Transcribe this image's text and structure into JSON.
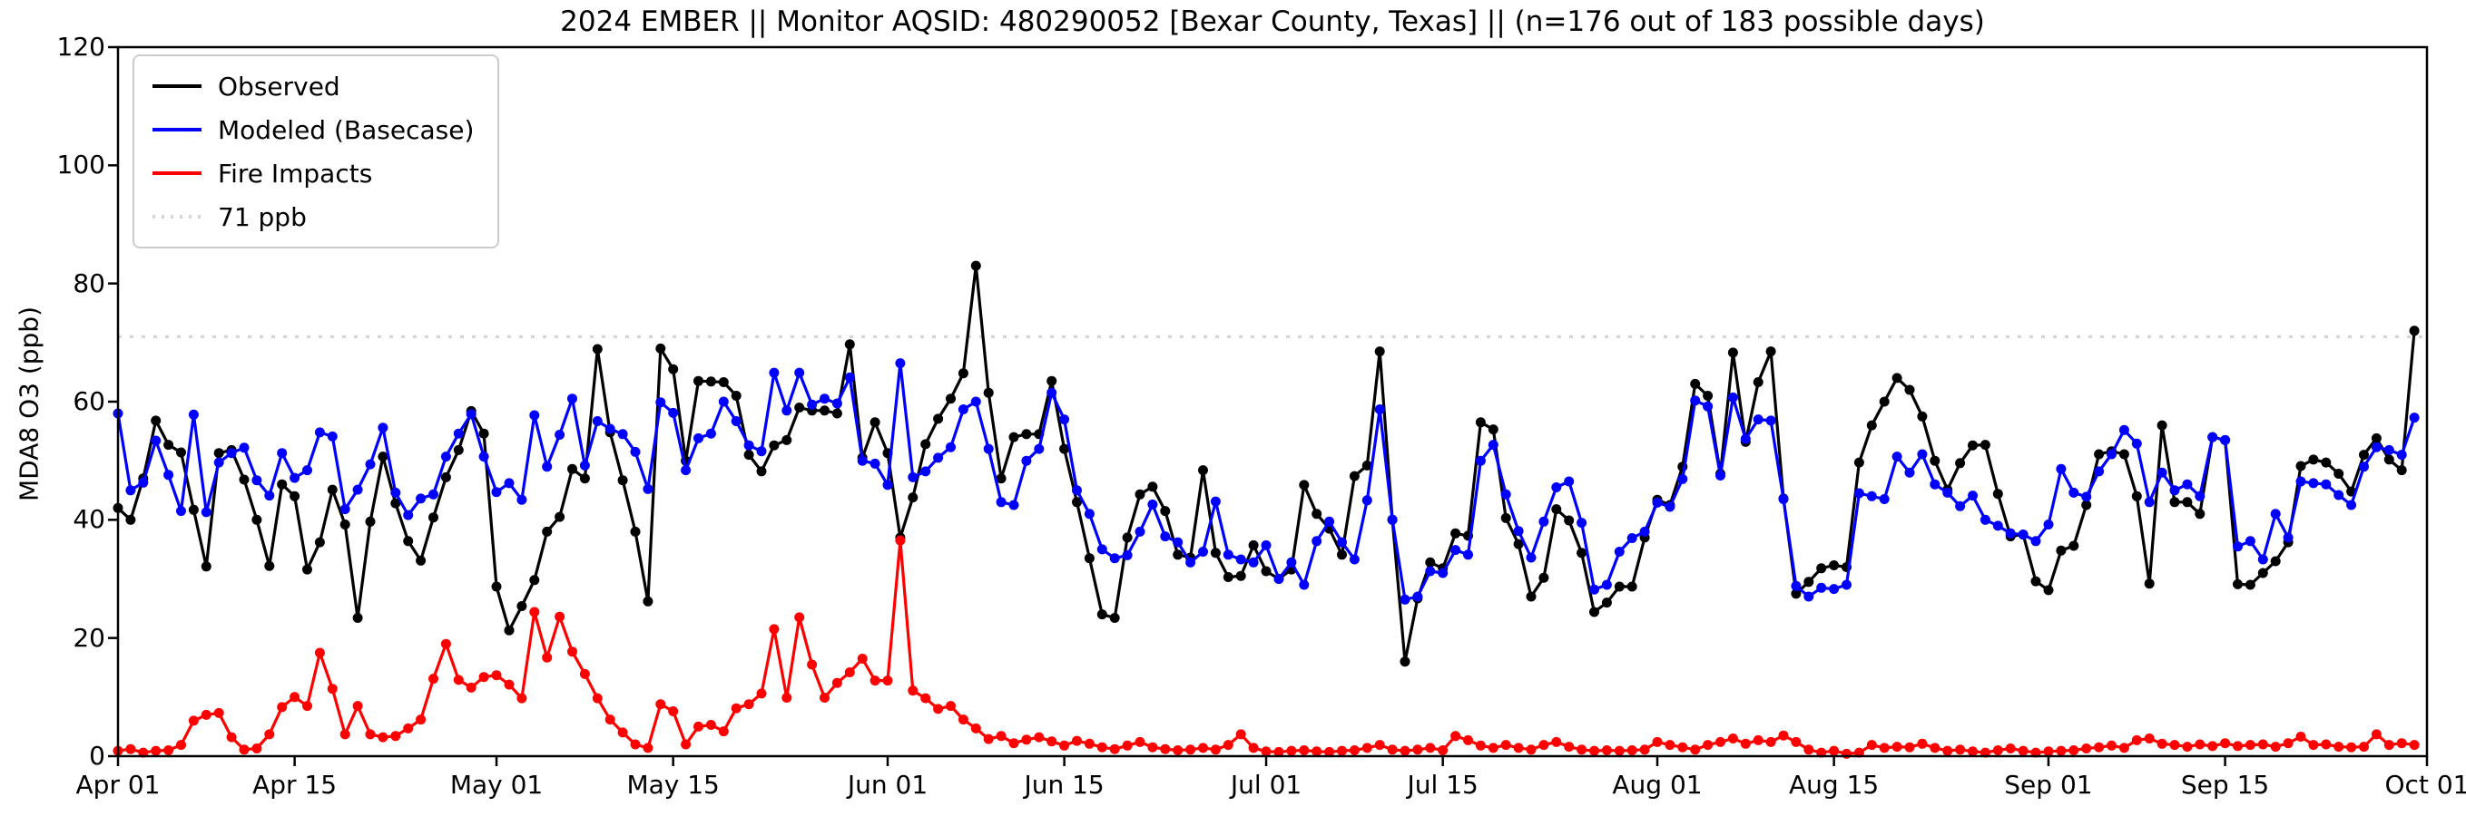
{
  "title": "2024 EMBER || Monitor AQSID: 480290052 [Bexar County, Texas] || (n=176 out of 183 possible days)",
  "ylabel": "MDA8 O3 (ppb)",
  "legend": [
    {
      "label": "Observed",
      "color": "#000000",
      "style": "solid"
    },
    {
      "label": "Modeled (Basecase)",
      "color": "#0000ff",
      "style": "solid"
    },
    {
      "label": "Fire Impacts",
      "color": "#ff0000",
      "style": "solid"
    },
    {
      "label": "71 ppb",
      "color": "#d3d3d3",
      "style": "dotted"
    }
  ],
  "chart_data": {
    "type": "line",
    "title": "2024 EMBER || Monitor AQSID: 480290052 [Bexar County, Texas] || (n=176 out of 183 possible days)",
    "xlabel": "",
    "ylabel": "MDA8 O3 (ppb)",
    "ylim": [
      0,
      120
    ],
    "ytick_values": [
      0,
      20,
      40,
      60,
      80,
      100,
      120
    ],
    "x_start_date": "2024-04-01",
    "x_days_total": 183,
    "xticks": [
      {
        "label": "Apr 01",
        "day": 0
      },
      {
        "label": "Apr 15",
        "day": 14
      },
      {
        "label": "May 01",
        "day": 30
      },
      {
        "label": "May 15",
        "day": 44
      },
      {
        "label": "Jun 01",
        "day": 61
      },
      {
        "label": "Jun 15",
        "day": 75
      },
      {
        "label": "Jul 01",
        "day": 91
      },
      {
        "label": "Jul 15",
        "day": 105
      },
      {
        "label": "Aug 01",
        "day": 122
      },
      {
        "label": "Aug 15",
        "day": 136
      },
      {
        "label": "Sep 01",
        "day": 153
      },
      {
        "label": "Sep 15",
        "day": 167
      },
      {
        "label": "Oct 01",
        "day": 183
      }
    ],
    "reference_line": {
      "value": 71,
      "label": "71 ppb",
      "color": "#d3d3d3",
      "style": "dotted"
    },
    "grid": false,
    "legend_position": "upper left",
    "series": [
      {
        "name": "Observed",
        "color": "#000000",
        "marker": "circle",
        "values": [
          42,
          40,
          47,
          56.8,
          52.7,
          51.4,
          41.7,
          32.1,
          51.3,
          51.8,
          46.8,
          40,
          32.2,
          46,
          44,
          31.6,
          36.2,
          45.1,
          39.2,
          23.4,
          39.7,
          50.7,
          42.8,
          36.4,
          33.1,
          40.4,
          47.2,
          51.8,
          58.4,
          54.6,
          28.7,
          21.3,
          25.4,
          29.8,
          38,
          40.5,
          48.6,
          47,
          68.9,
          54.8,
          46.7,
          38,
          26.2,
          69,
          65.5,
          50,
          63.5,
          63.4,
          63.3,
          61,
          51,
          48.2,
          52.6,
          53.5,
          59,
          58.5,
          58.5,
          58,
          69.7,
          50.5,
          56.5,
          51.3,
          37,
          43.8,
          52.8,
          57.1,
          60.5,
          64.8,
          83,
          61.5,
          47,
          54,
          54.5,
          54.5,
          63.5,
          52,
          43,
          33.5,
          24,
          23.4,
          37,
          44.3,
          45.6,
          41.5,
          34.1,
          33.6,
          48.4,
          34.4,
          30.3,
          30.5,
          35.7,
          31.3,
          30,
          31.6,
          45.9,
          41,
          38.5,
          34.1,
          47.4,
          49.2,
          68.5,
          40,
          16,
          26.7,
          32.8,
          31.8,
          37.7,
          37.3,
          56.5,
          55.3,
          40.3,
          35.9,
          27,
          30.2,
          41.8,
          39.9,
          34.4,
          24.4,
          26,
          28.7,
          28.7,
          37,
          43.4,
          42.5,
          49,
          63,
          61,
          47.8,
          68.3,
          53.2,
          63.3,
          68.5,
          43.6,
          27.5,
          29.5,
          31.8,
          32.3,
          32,
          49.7,
          56,
          60,
          64,
          62,
          57.5,
          50,
          45.1,
          49.6,
          52.6,
          52.7,
          44.4,
          37.2,
          37.5,
          29.6,
          28.1,
          34.8,
          35.6,
          42.5,
          51.1,
          51.6,
          51.1,
          44,
          29.2,
          56,
          43,
          43,
          41,
          54,
          53.5,
          29.1,
          29,
          31,
          33,
          36.2,
          49.1,
          50.2,
          49.7,
          47.8,
          44.8,
          51,
          53.8,
          50.2,
          48.4,
          72
        ]
      },
      {
        "name": "Modeled (Basecase)",
        "color": "#0000ff",
        "marker": "circle",
        "values": [
          58,
          45,
          46.3,
          53.4,
          47.6,
          41.5,
          57.8,
          41.3,
          49.7,
          51.3,
          52.2,
          46.7,
          44.1,
          51.3,
          47.1,
          48.4,
          54.8,
          54.1,
          41.8,
          45.1,
          49.4,
          55.6,
          44.6,
          40.8,
          43.6,
          44.3,
          50.7,
          54.6,
          57.9,
          50.7,
          44.7,
          46.2,
          43.4,
          57.7,
          49,
          54.4,
          60.5,
          49.2,
          56.7,
          55.4,
          54.5,
          51.5,
          45.2,
          59.9,
          58.1,
          48.4,
          53.8,
          54.6,
          60,
          56.7,
          52.6,
          51.6,
          64.9,
          58.5,
          64.9,
          59.5,
          60.5,
          59.7,
          64.1,
          50,
          49.5,
          45.9,
          66.5,
          47.2,
          48.2,
          50.5,
          52.3,
          58.7,
          60,
          52,
          43,
          42.5,
          50,
          52,
          61.5,
          57,
          45,
          41,
          35,
          33.5,
          34,
          38,
          42.6,
          37.2,
          36.2,
          32.8,
          34.6,
          43.1,
          34.1,
          33.3,
          32.8,
          35.7,
          30,
          32.8,
          29,
          36.4,
          39.7,
          36.2,
          33.3,
          43.3,
          58.7,
          40,
          26.5,
          27,
          31.3,
          31,
          34.9,
          34.1,
          50,
          52.7,
          44.3,
          38.1,
          33.6,
          39.7,
          45.5,
          46.5,
          39.5,
          28.2,
          29,
          34.6,
          36.9,
          38,
          42.9,
          42.2,
          46.9,
          60.2,
          59.2,
          47.5,
          60.7,
          53.7,
          57,
          56.8,
          43.5,
          28.8,
          27,
          28.5,
          28.3,
          29,
          44.5,
          44,
          43.5,
          50.7,
          48,
          51.1,
          46,
          44.6,
          42.3,
          44.1,
          40,
          39,
          37.7,
          37.5,
          36.4,
          39.2,
          48.6,
          44.6,
          43.9,
          48.2,
          51.1,
          55.2,
          52.9,
          43,
          48,
          45,
          46,
          44,
          54,
          53.5,
          35.5,
          36.4,
          33.3,
          41,
          37,
          46.5,
          46.2,
          46,
          44.2,
          42.5,
          49,
          52.3,
          51.8,
          51,
          57.3
        ]
      },
      {
        "name": "Fire Impacts",
        "color": "#ff0000",
        "marker": "circle",
        "values": [
          0.9,
          1.2,
          0.6,
          0.9,
          1,
          1.9,
          6,
          7,
          7.3,
          3.2,
          1.1,
          1.3,
          3.7,
          8.3,
          10,
          8.5,
          17.5,
          11.4,
          3.7,
          8.5,
          3.7,
          3.2,
          3.4,
          4.7,
          6.2,
          13.1,
          19,
          12.9,
          11.6,
          13.4,
          13.7,
          12.1,
          9.8,
          24.4,
          16.7,
          23.6,
          17.7,
          13.9,
          9.8,
          6.2,
          4,
          2,
          1.4,
          8.8,
          7.6,
          2,
          5,
          5.3,
          4.2,
          8.1,
          8.8,
          10.6,
          21.5,
          9.9,
          23.5,
          15.5,
          9.9,
          12.4,
          14.2,
          16.5,
          12.8,
          12.8,
          36.5,
          11.1,
          9.8,
          8,
          8.5,
          6.2,
          4.7,
          2.9,
          3.4,
          2.2,
          2.8,
          3.2,
          2.5,
          1.8,
          2.6,
          2.1,
          1.5,
          1.2,
          1.8,
          2.4,
          1.5,
          1.2,
          1,
          1.1,
          1.4,
          1.1,
          1.9,
          3.7,
          1.4,
          0.8,
          0.7,
          0.9,
          1,
          0.8,
          0.7,
          0.9,
          1,
          1.4,
          1.9,
          1.1,
          0.9,
          1.1,
          1.4,
          1,
          3.4,
          2.7,
          1.8,
          1.4,
          1.9,
          1.4,
          1.1,
          1.9,
          2.4,
          1.6,
          1.1,
          0.9,
          1,
          0.9,
          1,
          1.1,
          2.4,
          1.9,
          1.5,
          1.1,
          1.9,
          2.4,
          3,
          2.1,
          2.7,
          2.4,
          3.5,
          2.4,
          1.1,
          0.6,
          0.9,
          0.4,
          0.6,
          1.9,
          1.4,
          1.6,
          1.5,
          2.1,
          1.4,
          0.9,
          1.1,
          0.8,
          0.6,
          1,
          1.3,
          0.9,
          0.6,
          0.8,
          0.9,
          1,
          1.3,
          1.5,
          1.8,
          1.4,
          2.7,
          3,
          2.1,
          1.9,
          1.6,
          2,
          1.7,
          2.2,
          1.7,
          1.9,
          2,
          1.6,
          2.2,
          3.3,
          1.9,
          2,
          1.6,
          1.5,
          1.6,
          3.7,
          1.9,
          2.2,
          1.9
        ]
      }
    ],
    "layout": {
      "plot_left": 130,
      "plot_right": 2674,
      "plot_top": 52,
      "plot_bottom": 834
    }
  }
}
